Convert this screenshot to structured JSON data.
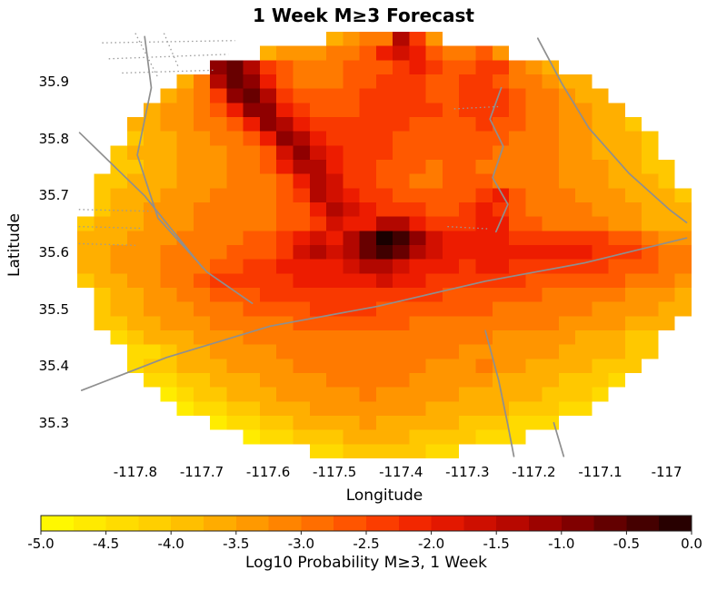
{
  "chart_data": {
    "type": "heatmap",
    "title": "1 Week M≥3 Forecast",
    "xlabel": "Longitude",
    "ylabel": "Latitude",
    "lon_range": [
      -117.8875,
      -116.9625
    ],
    "lat_range": [
      35.2375,
      35.9875
    ],
    "x_tick_values": [
      -117.8,
      -117.7,
      -117.6,
      -117.5,
      -117.4,
      -117.3,
      -117.2,
      -117.1,
      -117.0
    ],
    "x_tick_labels": [
      "-117.8",
      "-117.7",
      "-117.6",
      "-117.5",
      "-117.4",
      "-117.3",
      "-117.2",
      "-117.1",
      "-117"
    ],
    "y_tick_values": [
      35.9,
      35.8,
      35.7,
      35.6,
      35.5,
      35.4,
      35.3
    ],
    "y_tick_labels": [
      "35.9",
      "35.8",
      "35.7",
      "35.6",
      "35.5",
      "35.4",
      "35.3"
    ],
    "grid": {
      "lon_start": -117.8875,
      "lat_start": 35.9875,
      "cell_deg": 0.025,
      "ncols": 37,
      "nrows": 30,
      "value_codes": "0123456789abcdef",
      "value_min": -5,
      "value_max": 0,
      "rows": [
        "...............4566b85...............",
        "...........45556679a976675...........",
        "........cdb876667778987788654........",
        "......46bdc97666778887788766544......",
        ".....4568cdb87777888877888766544.....",
        "....455679cc987778888878887665544....",
        "...44556679cb988888877778776655443...",
        "...344556679cb988887777777666554443..",
        "..3444555667aca98887777776666554443..",
        "..33445556679bb988777677666665554433.",
        ".3344455566679ba88776677766665554443.",
        ".3444555666678ba988777778976665554443",
        ".34455566666779ba98887789876666555444",
        "344455566666778a99bb98889977666655444",
        "44455566667789a9bdfeca999988888877655",
        "4455566667778ababdedba999999999888766",
        "4455566677889999abba99989988888877766",
        "344556678888899999a998888887777776665",
        ".344556677788888888888777777666665554",
        ".344555666777788887777777666666555544",
        ".33445556666677777776666666665555444.",
        "..234445556666666666666665555544433..",
        "...22344555566666666666555555444433..",
        "...2334445555666666665556554444333...",
        "....22334445555666665555544443332....",
        ".....123344455555655555444443332.....",
        "......1223344455555554444433322......",
        "........122334444544444333222........",
        "..........12233344443333222..........",
        "..............223333322.............."
      ]
    },
    "colorbar": {
      "label": "Log10 Probability M≥3, 1 Week",
      "tick_values": [
        -5,
        -4.5,
        -4,
        -3.5,
        -3,
        -2.5,
        -2,
        -1.5,
        -1,
        -0.5,
        0
      ],
      "tick_labels": [
        "-5.0",
        "-4.5",
        "-4.0",
        "-3.5",
        "-3.0",
        "-2.5",
        "-2.0",
        "-1.5",
        "-1.0",
        "-0.5",
        "0.0"
      ],
      "min": -5,
      "max": 0,
      "segment_step": 0.25,
      "color_stops": [
        [
          -5.0,
          "#ffff00"
        ],
        [
          -4.5,
          "#ffe300"
        ],
        [
          -4.0,
          "#ffc800"
        ],
        [
          -3.5,
          "#ffa300"
        ],
        [
          -3.0,
          "#ff7a00"
        ],
        [
          -2.5,
          "#ff4800"
        ],
        [
          -2.0,
          "#ed1c00"
        ],
        [
          -1.5,
          "#c40a00"
        ],
        [
          -1.0,
          "#8f0000"
        ],
        [
          -0.5,
          "#540000"
        ],
        [
          0.0,
          "#190000"
        ]
      ]
    },
    "fault_line_color": "#8f8f8f",
    "fault_lines": {
      "solid": [
        [
          [
            -117.786,
            35.979
          ],
          [
            -117.776,
            35.889
          ],
          [
            -117.797,
            35.771
          ],
          [
            -117.766,
            35.66
          ],
          [
            -117.692,
            35.565
          ],
          [
            -117.624,
            35.51
          ]
        ],
        [
          [
            -117.884,
            35.81
          ],
          [
            -117.786,
            35.699
          ],
          [
            -117.699,
            35.573
          ]
        ],
        [
          [
            -117.881,
            35.357
          ],
          [
            -117.753,
            35.415
          ],
          [
            -117.597,
            35.47
          ],
          [
            -117.435,
            35.505
          ],
          [
            -117.273,
            35.549
          ],
          [
            -117.124,
            35.581
          ],
          [
            -116.97,
            35.625
          ]
        ],
        [
          [
            -117.194,
            35.976
          ],
          [
            -117.158,
            35.897
          ],
          [
            -117.117,
            35.818
          ],
          [
            -117.057,
            35.739
          ],
          [
            -116.996,
            35.675
          ],
          [
            -116.97,
            35.652
          ]
        ],
        [
          [
            -117.249,
            35.889
          ],
          [
            -117.266,
            35.834
          ],
          [
            -117.246,
            35.786
          ],
          [
            -117.262,
            35.731
          ],
          [
            -117.239,
            35.684
          ],
          [
            -117.257,
            35.636
          ]
        ],
        [
          [
            -117.273,
            35.462
          ],
          [
            -117.253,
            35.375
          ],
          [
            -117.239,
            35.296
          ],
          [
            -117.23,
            35.241
          ]
        ],
        [
          [
            -117.17,
            35.3
          ],
          [
            -117.155,
            35.241
          ]
        ]
      ],
      "dotted": [
        [
          [
            -117.85,
            35.968
          ],
          [
            -117.65,
            35.972
          ]
        ],
        [
          [
            -117.84,
            35.94
          ],
          [
            -117.66,
            35.948
          ]
        ],
        [
          [
            -117.82,
            35.915
          ],
          [
            -117.68,
            35.92
          ]
        ],
        [
          [
            -117.885,
            35.675
          ],
          [
            -117.775,
            35.672
          ]
        ],
        [
          [
            -117.885,
            35.645
          ],
          [
            -117.79,
            35.642
          ]
        ],
        [
          [
            -117.885,
            35.615
          ],
          [
            -117.8,
            35.612
          ]
        ],
        [
          [
            -117.33,
            35.645
          ],
          [
            -117.268,
            35.641
          ]
        ],
        [
          [
            -117.32,
            35.852
          ],
          [
            -117.252,
            35.856
          ]
        ],
        [
          [
            -117.8,
            35.985
          ],
          [
            -117.765,
            35.905
          ]
        ],
        [
          [
            -117.757,
            35.985
          ],
          [
            -117.735,
            35.925
          ]
        ]
      ]
    }
  }
}
